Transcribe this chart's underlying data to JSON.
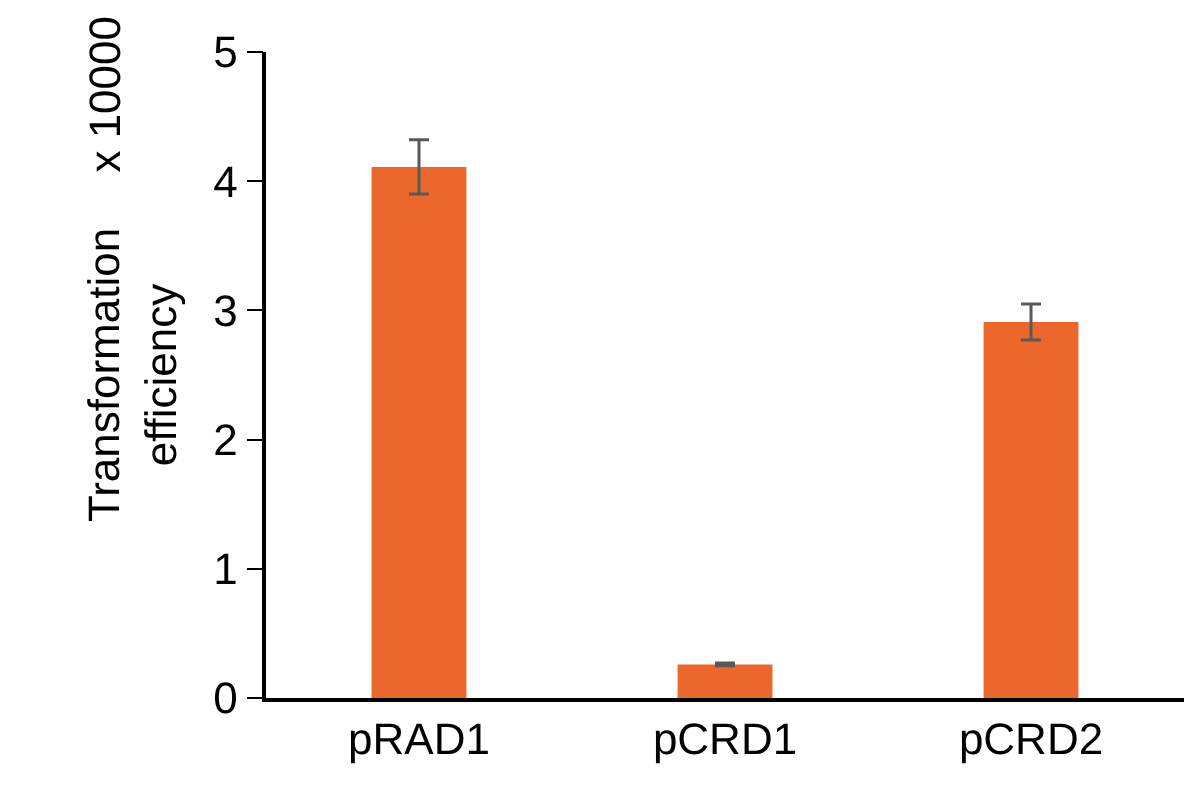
{
  "chart_data": {
    "type": "bar",
    "ylabel": "Transformation efficiency",
    "categories": [
      "pRAD1",
      "pCRD1",
      "pCRD2"
    ],
    "values": [
      4.11,
      0.26,
      2.91
    ],
    "errors": [
      0.21,
      0.01,
      0.14
    ],
    "color": "#ec672c",
    "ylim": [
      0,
      5
    ],
    "yticks": [
      0,
      1,
      2,
      3,
      4,
      5
    ],
    "grid": false,
    "annotations": [
      "x 10000"
    ]
  }
}
